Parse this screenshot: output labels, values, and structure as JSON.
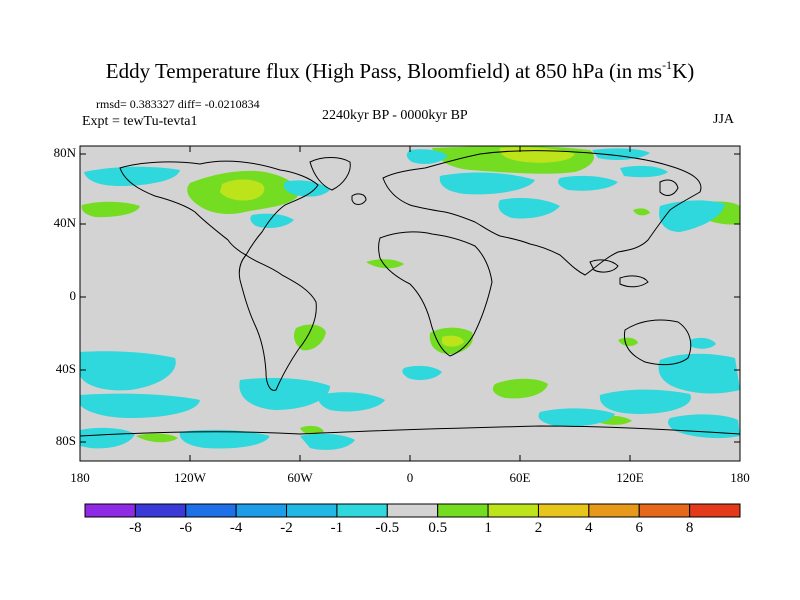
{
  "header": {
    "title_main": "Eddy Temperature flux (High Pass, Bloomfield) at 850 hPa (in ms",
    "title_sup": "-1",
    "title_end": "K)",
    "stats": "rmsd= 0.383327 diff= -0.0210834",
    "experiment": "Expt = tewTu-tevta1",
    "period": "2240kyr BP - 0000kyr BP",
    "season": "JJA"
  },
  "axes": {
    "lat_ticks": [
      "80N",
      "40N",
      "0",
      "40S",
      "80S"
    ],
    "lon_ticks": [
      "180",
      "120W",
      "60W",
      "0",
      "60E",
      "120E",
      "180"
    ]
  },
  "colorbar": {
    "labels": [
      "-8",
      "-6",
      "-4",
      "-2",
      "-1",
      "-0.5",
      "0.5",
      "1",
      "2",
      "4",
      "6",
      "8"
    ],
    "colors": [
      "#8f2be5",
      "#3b39d8",
      "#1e70e6",
      "#1e9ce8",
      "#21b9e3",
      "#2ed8dc",
      "#d3d3d3",
      "#74dd22",
      "#bde41b",
      "#e8c51a",
      "#e6991a",
      "#e5681c",
      "#e23a1b"
    ]
  },
  "map_colors": {
    "background": "#d3d3d3",
    "coast": "#000000"
  }
}
